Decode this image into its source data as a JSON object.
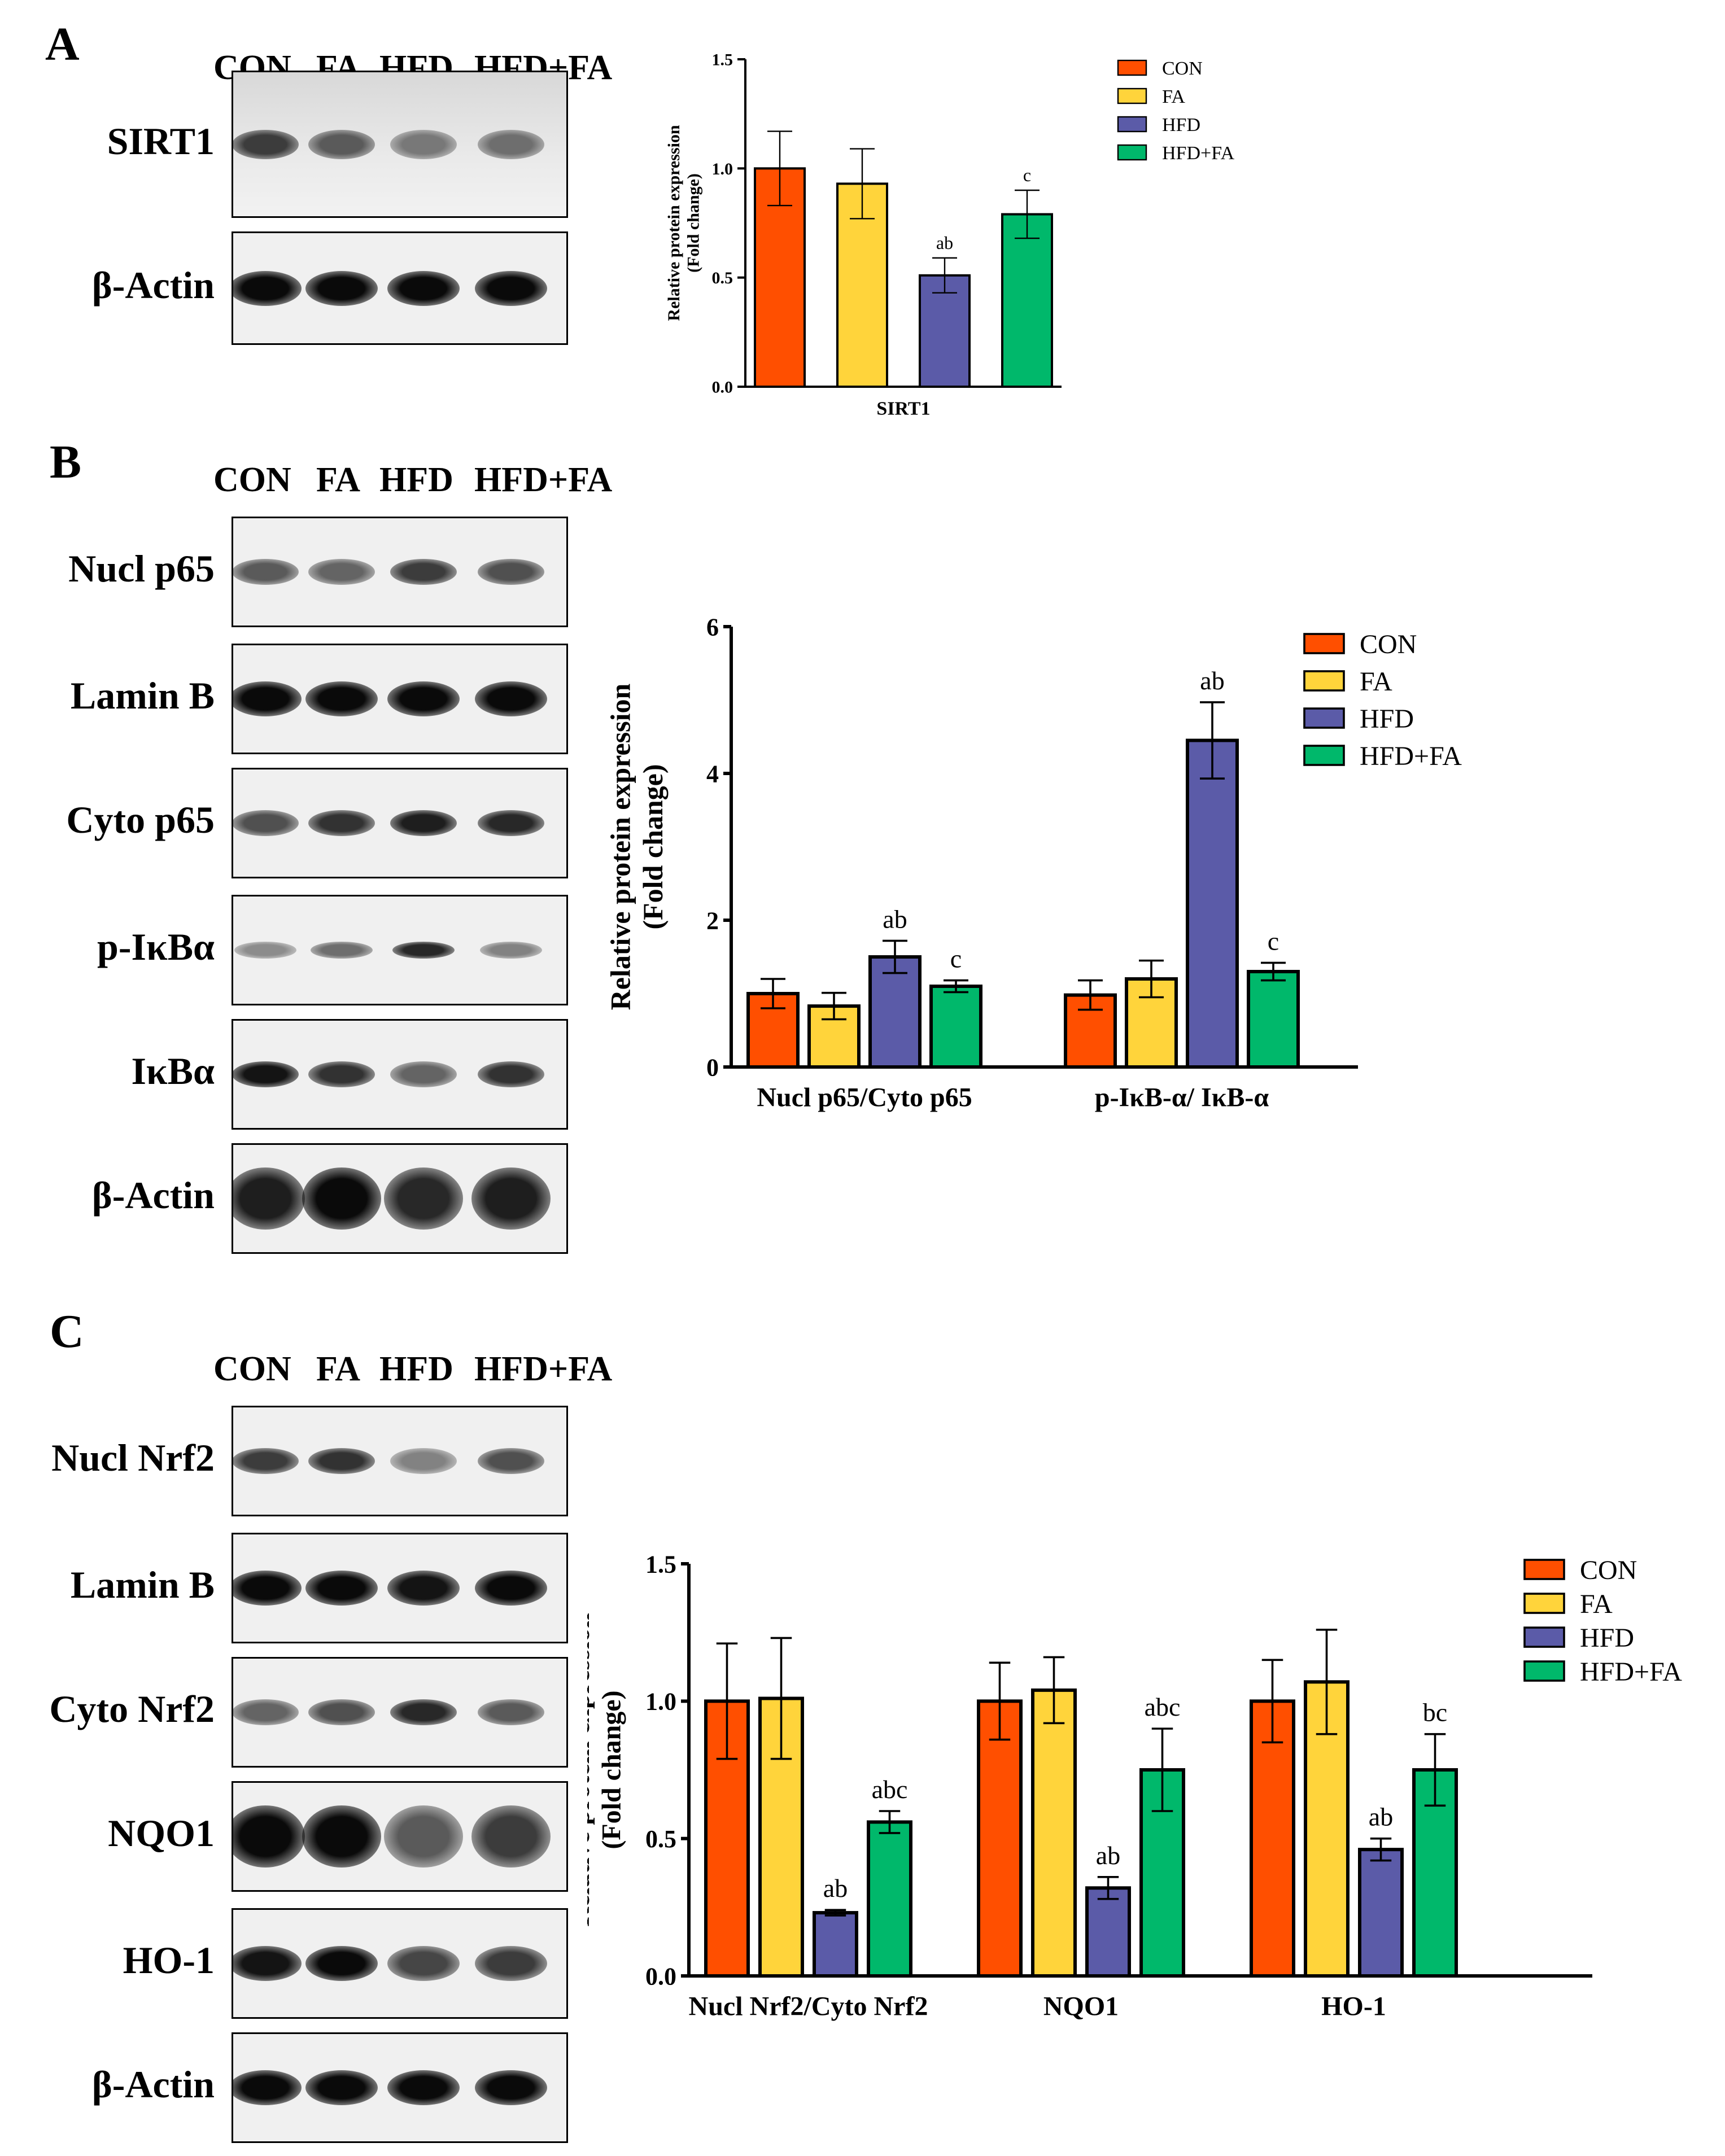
{
  "colors": {
    "CON": "#ff4f00",
    "FA": "#ffd43b",
    "HFD": "#5b5ba8",
    "HFD+FA": "#00b86b"
  },
  "panels": [
    {
      "letter": "A",
      "lanes": [
        "CON",
        "FA",
        "HFD",
        "HFD+FA"
      ],
      "blots": [
        {
          "label": "SIRT1",
          "bands": [
            0.75,
            0.6,
            0.45,
            0.5
          ],
          "style": "smear"
        },
        {
          "label": "β-Actin",
          "bands": [
            1,
            1,
            1,
            1
          ],
          "style": "strong"
        }
      ]
    },
    {
      "letter": "B",
      "lanes": [
        "CON",
        "FA",
        "HFD",
        "HFD+FA"
      ],
      "blots": [
        {
          "label": "Nucl p65",
          "bands": [
            0.6,
            0.55,
            0.75,
            0.65
          ],
          "style": "normal"
        },
        {
          "label": "Lamin B",
          "bands": [
            1,
            1,
            1,
            1
          ],
          "style": "strong"
        },
        {
          "label": "Cyto p65",
          "bands": [
            0.65,
            0.8,
            0.9,
            0.85
          ],
          "style": "normal"
        },
        {
          "label": "p-IκBα",
          "bands": [
            0.35,
            0.5,
            0.85,
            0.4
          ],
          "style": "thin"
        },
        {
          "label": "IκBα",
          "bands": [
            0.95,
            0.8,
            0.55,
            0.8
          ],
          "style": "normal"
        },
        {
          "label": "β-Actin",
          "bands": [
            0.9,
            1,
            0.85,
            0.9
          ],
          "style": "blob"
        }
      ]
    },
    {
      "letter": "C",
      "lanes": [
        "CON",
        "FA",
        "HFD",
        "HFD+FA"
      ],
      "blots": [
        {
          "label": "Nucl Nrf2",
          "bands": [
            0.75,
            0.8,
            0.4,
            0.65
          ],
          "style": "normal"
        },
        {
          "label": "Lamin B",
          "bands": [
            1,
            1,
            0.95,
            1
          ],
          "style": "strong"
        },
        {
          "label": "Cyto Nrf2",
          "bands": [
            0.55,
            0.65,
            0.85,
            0.6
          ],
          "style": "normal"
        },
        {
          "label": "NQO1",
          "bands": [
            1,
            1,
            0.6,
            0.75
          ],
          "style": "blob"
        },
        {
          "label": "HO-1",
          "bands": [
            0.95,
            1,
            0.7,
            0.75
          ],
          "style": "strong"
        },
        {
          "label": "β-Actin",
          "bands": [
            1,
            1,
            1,
            1
          ],
          "style": "strong"
        }
      ]
    }
  ],
  "chart_data": [
    {
      "type": "bar",
      "ylabel": "Relative protein expression (Fold change)",
      "ylim": [
        0,
        1.5
      ],
      "yticks": [
        "0.0",
        "0.5",
        "1.0",
        "1.5"
      ],
      "categories": [
        "SIRT1"
      ],
      "series": [
        {
          "name": "CON",
          "values": [
            1.0
          ],
          "errors": [
            0.17
          ],
          "labels": [
            ""
          ]
        },
        {
          "name": "FA",
          "values": [
            0.93
          ],
          "errors": [
            0.16
          ],
          "labels": [
            ""
          ]
        },
        {
          "name": "HFD",
          "values": [
            0.51
          ],
          "errors": [
            0.08
          ],
          "labels": [
            "ab"
          ]
        },
        {
          "name": "HFD+FA",
          "values": [
            0.79
          ],
          "errors": [
            0.11
          ],
          "labels": [
            "c"
          ]
        }
      ],
      "legend": [
        "CON",
        "FA",
        "HFD",
        "HFD+FA"
      ]
    },
    {
      "type": "bar",
      "ylabel": "Relative protein expression (Fold change)",
      "ylim": [
        0,
        6
      ],
      "yticks": [
        "0",
        "2",
        "4",
        "6"
      ],
      "categories": [
        "Nucl p65/Cyto p65",
        "p-IκB-α/ IκB-α"
      ],
      "series": [
        {
          "name": "CON",
          "values": [
            1.0,
            0.98
          ],
          "errors": [
            0.2,
            0.2
          ],
          "labels": [
            "",
            ""
          ]
        },
        {
          "name": "FA",
          "values": [
            0.83,
            1.2
          ],
          "errors": [
            0.18,
            0.25
          ],
          "labels": [
            "",
            ""
          ]
        },
        {
          "name": "HFD",
          "values": [
            1.5,
            4.45
          ],
          "errors": [
            0.22,
            0.52
          ],
          "labels": [
            "ab",
            "ab"
          ]
        },
        {
          "name": "HFD+FA",
          "values": [
            1.1,
            1.3
          ],
          "errors": [
            0.08,
            0.12
          ],
          "labels": [
            "c",
            "c"
          ]
        }
      ],
      "legend": [
        "CON",
        "FA",
        "HFD",
        "HFD+FA"
      ]
    },
    {
      "type": "bar",
      "ylabel": "Relative protein expression (Fold change)",
      "ylim": [
        0,
        1.5
      ],
      "yticks": [
        "0.0",
        "0.5",
        "1.0",
        "1.5"
      ],
      "categories": [
        "Nucl Nrf2/Cyto Nrf2",
        "NQO1",
        "HO-1"
      ],
      "series": [
        {
          "name": "CON",
          "values": [
            1.0,
            1.0,
            1.0
          ],
          "errors": [
            0.21,
            0.14,
            0.15
          ],
          "labels": [
            "",
            "",
            ""
          ]
        },
        {
          "name": "FA",
          "values": [
            1.01,
            1.04,
            1.07
          ],
          "errors": [
            0.22,
            0.12,
            0.19
          ],
          "labels": [
            "",
            "",
            ""
          ]
        },
        {
          "name": "HFD",
          "values": [
            0.23,
            0.32,
            0.46
          ],
          "errors": [
            0.01,
            0.04,
            0.04
          ],
          "labels": [
            "ab",
            "ab",
            "ab"
          ]
        },
        {
          "name": "HFD+FA",
          "values": [
            0.56,
            0.75,
            0.75
          ],
          "errors": [
            0.04,
            0.15,
            0.13
          ],
          "labels": [
            "abc",
            "abc",
            "bc"
          ]
        }
      ],
      "legend": [
        "CON",
        "FA",
        "HFD",
        "HFD+FA"
      ]
    }
  ]
}
